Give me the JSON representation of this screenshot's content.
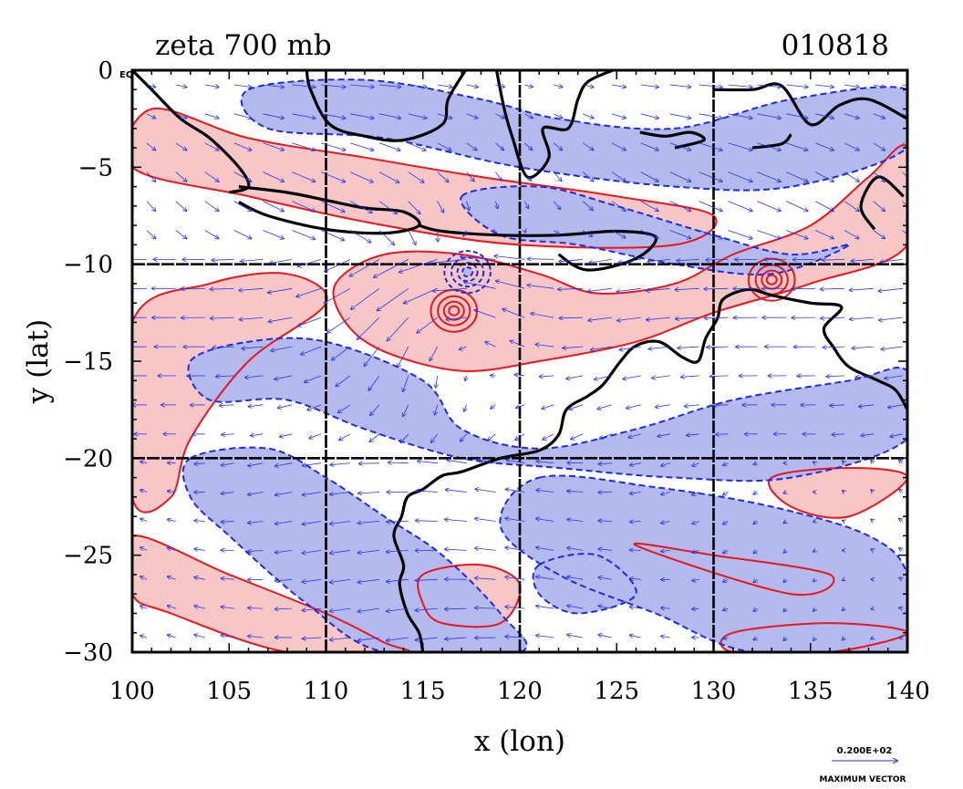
{
  "title_left": "zeta 700 mb",
  "title_right": "010818",
  "origin_label": "EQ",
  "xlabel": "x (lon)",
  "ylabel": "y (lat)",
  "vector_scale": {
    "value_label": "0.200E+02",
    "caption": "MAXIMUM VECTOR"
  },
  "colors": {
    "positive_fill": "#f7c6c6",
    "positive_line": "#e8161d",
    "negative_fill": "#b4b9ee",
    "negative_line": "#1f2be0",
    "coast": "#000000",
    "arrow": "#2a36e6"
  },
  "chart_data": {
    "type": "heatmap",
    "xlim": [
      100,
      140
    ],
    "ylim": [
      -30,
      0
    ],
    "xticks": [
      100,
      105,
      110,
      115,
      120,
      125,
      130,
      135,
      140
    ],
    "yticks": [
      0,
      -5,
      -10,
      -15,
      -20,
      -25,
      -30
    ],
    "ytick_labels": [
      "0",
      "−5",
      "−10",
      "−15",
      "−20",
      "−25",
      "−30"
    ],
    "grid_lon": [
      110,
      120,
      130
    ],
    "grid_lat": [
      -10,
      -20
    ],
    "vorticity_regions": [
      {
        "sign": "positive",
        "outline": [
          [
            101,
            -2
          ],
          [
            106,
            -3.5
          ],
          [
            112,
            -4.5
          ],
          [
            118,
            -5.5
          ],
          [
            125,
            -6.5
          ],
          [
            130,
            -7.5
          ],
          [
            128,
            -9
          ],
          [
            120,
            -9
          ],
          [
            113,
            -8
          ],
          [
            106,
            -6.5
          ],
          [
            100,
            -5
          ]
        ]
      },
      {
        "sign": "positive",
        "outline": [
          [
            100,
            -13
          ],
          [
            104,
            -11
          ],
          [
            108,
            -10.5
          ],
          [
            110,
            -12
          ],
          [
            106,
            -15
          ],
          [
            103,
            -19
          ],
          [
            102,
            -22
          ],
          [
            100,
            -22
          ]
        ]
      },
      {
        "sign": "positive",
        "outline": [
          [
            110.5,
            -11
          ],
          [
            113,
            -9.5
          ],
          [
            117,
            -9.5
          ],
          [
            121,
            -10.5
          ],
          [
            124,
            -11.5
          ],
          [
            128,
            -11
          ],
          [
            131,
            -9.5
          ],
          [
            135,
            -8
          ],
          [
            138,
            -5.5
          ],
          [
            140,
            -4
          ],
          [
            140,
            -9
          ],
          [
            135,
            -11
          ],
          [
            130,
            -12.5
          ],
          [
            126,
            -14
          ],
          [
            121,
            -15
          ],
          [
            117,
            -15.5
          ],
          [
            113,
            -14.5
          ],
          [
            111,
            -13
          ]
        ]
      },
      {
        "sign": "positive",
        "outline": [
          [
            100,
            -24
          ],
          [
            105,
            -26
          ],
          [
            110,
            -28
          ],
          [
            113,
            -29.5
          ],
          [
            114,
            -30
          ],
          [
            108,
            -30
          ],
          [
            102,
            -28
          ],
          [
            100,
            -27
          ]
        ]
      },
      {
        "sign": "positive",
        "outline": [
          [
            115,
            -26
          ],
          [
            118,
            -25.5
          ],
          [
            120,
            -26.5
          ],
          [
            119,
            -28.5
          ],
          [
            116,
            -28.5
          ],
          [
            115,
            -27.5
          ]
        ]
      },
      {
        "sign": "positive",
        "outline": [
          [
            126,
            -24.5
          ],
          [
            130,
            -25
          ],
          [
            136,
            -26
          ],
          [
            134,
            -27
          ]
        ]
      },
      {
        "sign": "positive",
        "outline": [
          [
            133,
            -21
          ],
          [
            137,
            -20.5
          ],
          [
            140,
            -21
          ],
          [
            137,
            -23
          ],
          [
            134,
            -22.5
          ]
        ]
      },
      {
        "sign": "positive",
        "outline": [
          [
            131,
            -29
          ],
          [
            136,
            -28.5
          ],
          [
            140,
            -29
          ],
          [
            136,
            -30
          ],
          [
            131,
            -30
          ]
        ]
      },
      {
        "sign": "negative",
        "outline": [
          [
            106,
            -1
          ],
          [
            112,
            -0.5
          ],
          [
            118,
            -1.5
          ],
          [
            122,
            -2.5
          ],
          [
            128,
            -3
          ],
          [
            134,
            -1.5
          ],
          [
            140,
            -1
          ],
          [
            140,
            -4
          ],
          [
            134,
            -6
          ],
          [
            128,
            -6
          ],
          [
            120,
            -5
          ],
          [
            113,
            -3.5
          ],
          [
            107,
            -3
          ]
        ]
      },
      {
        "sign": "negative",
        "outline": [
          [
            117,
            -6.5
          ],
          [
            121,
            -6
          ],
          [
            125,
            -7
          ],
          [
            130,
            -8.5
          ],
          [
            134,
            -9.5
          ],
          [
            137,
            -9
          ],
          [
            133,
            -10.5
          ],
          [
            128,
            -10
          ],
          [
            123,
            -9
          ],
          [
            119,
            -8.5
          ]
        ]
      },
      {
        "sign": "negative",
        "outline": [
          [
            103,
            -15
          ],
          [
            106,
            -14
          ],
          [
            110,
            -14
          ],
          [
            115,
            -16
          ],
          [
            117,
            -18.5
          ],
          [
            121,
            -19.5
          ],
          [
            126,
            -18.5
          ],
          [
            131,
            -17
          ],
          [
            137,
            -16
          ],
          [
            140,
            -15.5
          ],
          [
            140,
            -19
          ],
          [
            134,
            -21
          ],
          [
            128,
            -21
          ],
          [
            122,
            -20.5
          ],
          [
            117,
            -20
          ],
          [
            112,
            -18.5
          ],
          [
            108,
            -17
          ],
          [
            104,
            -17
          ]
        ]
      },
      {
        "sign": "negative",
        "outline": [
          [
            103,
            -20
          ],
          [
            107,
            -19.5
          ],
          [
            110,
            -21
          ],
          [
            113,
            -23
          ],
          [
            116,
            -25
          ],
          [
            119,
            -28
          ],
          [
            120,
            -30
          ],
          [
            113,
            -30
          ],
          [
            109,
            -27.5
          ],
          [
            105,
            -24
          ],
          [
            103,
            -22
          ]
        ]
      },
      {
        "sign": "negative",
        "outline": [
          [
            121,
            -21
          ],
          [
            127,
            -21.5
          ],
          [
            133,
            -22.5
          ],
          [
            138,
            -24
          ],
          [
            140,
            -26
          ],
          [
            140,
            -30
          ],
          [
            132,
            -30
          ],
          [
            127,
            -28
          ],
          [
            122,
            -26
          ],
          [
            119,
            -23.5
          ]
        ]
      },
      {
        "sign": "negative",
        "outline": [
          [
            121,
            -25.5
          ],
          [
            124,
            -25
          ],
          [
            126,
            -27
          ],
          [
            123,
            -28
          ],
          [
            121,
            -27
          ]
        ]
      }
    ],
    "centers": [
      {
        "sign": "positive",
        "lon": 116.6,
        "lat": -12.4
      },
      {
        "sign": "positive",
        "lon": 133,
        "lat": -10.8
      },
      {
        "sign": "negative",
        "lon": 117.3,
        "lat": -10.4
      }
    ],
    "coastlines": [
      [
        [
          100,
          0
        ],
        [
          101,
          -1
        ],
        [
          102.5,
          -2.5
        ],
        [
          104,
          -3.5
        ],
        [
          105.5,
          -5
        ],
        [
          106,
          -6
        ],
        [
          105,
          -6.3
        ]
      ],
      [
        [
          105.5,
          -6
        ],
        [
          108,
          -6.3
        ],
        [
          110,
          -6.7
        ],
        [
          112,
          -7.1
        ],
        [
          114,
          -7.3
        ],
        [
          114.8,
          -8
        ],
        [
          113,
          -8.4
        ],
        [
          110,
          -8.2
        ],
        [
          107,
          -7.5
        ],
        [
          105.5,
          -6.8
        ]
      ],
      [
        [
          114.8,
          -8
        ],
        [
          116,
          -8.3
        ],
        [
          119,
          -8.5
        ],
        [
          122,
          -8.5
        ],
        [
          125,
          -8.3
        ],
        [
          127,
          -8.6
        ],
        [
          126,
          -9.7
        ],
        [
          123.5,
          -10.3
        ],
        [
          122,
          -9.5
        ]
      ],
      [
        [
          109,
          0
        ],
        [
          109.2,
          -1
        ],
        [
          110.2,
          -2.8
        ],
        [
          112,
          -3.4
        ],
        [
          114,
          -3.6
        ],
        [
          116,
          -2.8
        ],
        [
          116.3,
          -1.5
        ],
        [
          117.2,
          0
        ]
      ],
      [
        [
          118.8,
          0
        ],
        [
          119.2,
          -2
        ],
        [
          119.6,
          -3.4
        ],
        [
          120.4,
          -5.5
        ],
        [
          121.5,
          -4.5
        ],
        [
          121.2,
          -3
        ],
        [
          122.5,
          -3
        ],
        [
          123,
          -1.5
        ],
        [
          123.5,
          -0.6
        ],
        [
          124.8,
          0
        ]
      ],
      [
        [
          126.2,
          -3.2
        ],
        [
          127.5,
          -3.4
        ],
        [
          128.8,
          -3.2
        ],
        [
          129.5,
          -3.6
        ],
        [
          128,
          -4
        ]
      ],
      [
        [
          130,
          -1
        ],
        [
          132,
          -1
        ],
        [
          133.5,
          -0.8
        ],
        [
          135,
          -2.8
        ],
        [
          136.5,
          -1.8
        ],
        [
          138,
          -1.5
        ],
        [
          140,
          -2.5
        ]
      ],
      [
        [
          132,
          -4
        ],
        [
          133.5,
          -3.8
        ],
        [
          134,
          -3.3
        ]
      ],
      [
        [
          138.3,
          -8.2
        ],
        [
          137.6,
          -7
        ],
        [
          138.5,
          -5.5
        ],
        [
          139.8,
          -6.5
        ]
      ],
      [
        [
          140,
          -17.5
        ],
        [
          139.4,
          -16.5
        ],
        [
          138.5,
          -16
        ],
        [
          137,
          -15.3
        ],
        [
          136.2,
          -14.3
        ],
        [
          135.7,
          -13.3
        ],
        [
          136.6,
          -12.2
        ],
        [
          135,
          -12
        ],
        [
          133,
          -11.6
        ],
        [
          131.8,
          -11.3
        ],
        [
          130.5,
          -11.8
        ],
        [
          130.2,
          -12.8
        ],
        [
          129.6,
          -13.8
        ],
        [
          129.2,
          -15
        ],
        [
          128.4,
          -14.8
        ],
        [
          127.2,
          -14
        ],
        [
          126,
          -14.2
        ],
        [
          125.2,
          -15
        ],
        [
          124.3,
          -16.2
        ],
        [
          123.5,
          -16.8
        ],
        [
          122.4,
          -17.5
        ],
        [
          122,
          -18.8
        ],
        [
          121,
          -19.6
        ],
        [
          119,
          -20
        ],
        [
          117,
          -20.7
        ],
        [
          116,
          -20.9
        ],
        [
          115,
          -21.6
        ],
        [
          114.2,
          -22
        ],
        [
          113.9,
          -23
        ],
        [
          113.5,
          -24
        ],
        [
          114,
          -25.5
        ],
        [
          113.8,
          -26.5
        ],
        [
          114.2,
          -28
        ],
        [
          114.8,
          -29
        ],
        [
          115,
          -30
        ]
      ]
    ],
    "wind_field": {
      "max_vector": 20,
      "grid_step_deg": 1.5,
      "note": "streaming westerly/easterly flow with cyclonic circulation around 116.6E 12.4S"
    }
  }
}
